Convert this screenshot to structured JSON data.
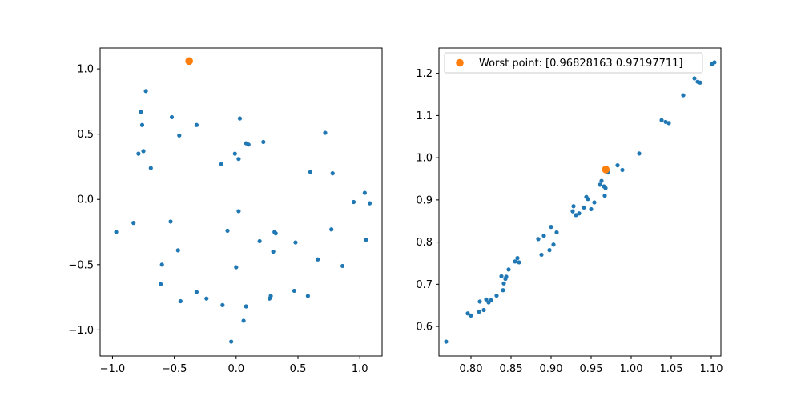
{
  "colors": {
    "series_main": "#1f77b4",
    "series_worst": "#ff7f0e",
    "axes": "#000000",
    "background": "#ffffff"
  },
  "chart_data": [
    {
      "type": "scatter",
      "title": "",
      "xlabel": "",
      "ylabel": "",
      "xlim": [
        -1.1,
        1.18
      ],
      "ylim": [
        -1.2,
        1.16
      ],
      "xticks": [
        "−1.0",
        "−0.5",
        "0.0",
        "0.5",
        "1.0"
      ],
      "yticks": [
        "−1.0",
        "−0.5",
        "0.0",
        "0.5",
        "1.0"
      ],
      "legend": null,
      "series": [
        {
          "color": "#1f77b4",
          "marker_size": "small",
          "x": [
            0.72,
            0.95,
            1.04,
            1.05,
            1.08,
            0.86,
            0.78,
            0.77,
            0.66,
            0.6,
            0.58,
            0.48,
            0.47,
            0.32,
            0.31,
            0.3,
            0.28,
            0.27,
            0.22,
            0.19,
            0.1,
            0.08,
            0.08,
            0.06,
            0.03,
            0.02,
            0.02,
            0.0,
            -0.01,
            -0.04,
            -0.07,
            -0.11,
            -0.12,
            -0.24,
            -0.32,
            -0.32,
            -0.45,
            -0.46,
            -0.47,
            -0.52,
            -0.53,
            -0.6,
            -0.61,
            -0.69,
            -0.73,
            -0.75,
            -0.76,
            -0.77,
            -0.79,
            -0.83,
            -0.97
          ],
          "y": [
            0.51,
            -0.02,
            0.05,
            -0.31,
            -0.03,
            -0.51,
            0.2,
            -0.23,
            -0.46,
            0.21,
            -0.74,
            -0.33,
            -0.7,
            -0.26,
            -0.25,
            -0.4,
            -0.74,
            -0.76,
            0.44,
            -0.32,
            0.42,
            0.43,
            -0.82,
            -0.93,
            0.62,
            -0.09,
            0.31,
            -0.52,
            0.35,
            -1.09,
            -0.24,
            -0.81,
            0.27,
            -0.76,
            0.57,
            -0.71,
            -0.78,
            0.49,
            -0.39,
            0.63,
            -0.17,
            -0.5,
            -0.65,
            0.24,
            0.83,
            0.37,
            0.57,
            0.67,
            0.35,
            -0.18,
            -0.25
          ]
        },
        {
          "color": "#ff7f0e",
          "marker_size": "large",
          "x": [
            -0.38
          ],
          "y": [
            1.06
          ]
        }
      ]
    },
    {
      "type": "scatter",
      "title": "",
      "xlabel": "",
      "ylabel": "",
      "xlim": [
        0.76,
        1.112
      ],
      "ylim": [
        0.53,
        1.26
      ],
      "xticks": [
        "0.80",
        "0.85",
        "0.90",
        "0.95",
        "1.00",
        "1.05",
        "1.10"
      ],
      "yticks": [
        "0.6",
        "0.7",
        "0.8",
        "0.9",
        "1.0",
        "1.1",
        "1.2"
      ],
      "legend": {
        "position": "top-left",
        "entries": [
          "Worst point: [0.96828163 0.97197711]"
        ]
      },
      "series": [
        {
          "color": "#1f77b4",
          "marker_size": "small",
          "x": [
            0.769,
            0.796,
            0.8,
            0.81,
            0.811,
            0.816,
            0.819,
            0.822,
            0.825,
            0.832,
            0.838,
            0.84,
            0.841,
            0.843,
            0.844,
            0.847,
            0.855,
            0.858,
            0.86,
            0.884,
            0.888,
            0.891,
            0.898,
            0.9,
            0.903,
            0.907,
            0.927,
            0.928,
            0.931,
            0.935,
            0.941,
            0.944,
            0.946,
            0.95,
            0.954,
            0.961,
            0.963,
            0.966,
            0.967,
            0.968,
            0.971,
            0.983,
            0.989,
            1.01,
            1.038,
            1.043,
            1.047,
            1.065,
            1.079,
            1.083,
            1.086,
            1.101,
            1.104
          ],
          "y": [
            0.564,
            0.631,
            0.626,
            0.635,
            0.659,
            0.639,
            0.664,
            0.657,
            0.662,
            0.673,
            0.719,
            0.686,
            0.702,
            0.713,
            0.718,
            0.735,
            0.754,
            0.762,
            0.752,
            0.807,
            0.77,
            0.815,
            0.781,
            0.836,
            0.794,
            0.823,
            0.873,
            0.885,
            0.864,
            0.868,
            0.882,
            0.907,
            0.902,
            0.878,
            0.894,
            0.936,
            0.945,
            0.932,
            0.91,
            0.928,
            0.965,
            0.982,
            0.971,
            1.01,
            1.089,
            1.085,
            1.082,
            1.148,
            1.188,
            1.18,
            1.178,
            1.222,
            1.226
          ]
        },
        {
          "name": "Worst point: [0.96828163 0.97197711]",
          "color": "#ff7f0e",
          "marker_size": "large",
          "x": [
            0.96828163
          ],
          "y": [
            0.97197711
          ]
        }
      ]
    }
  ]
}
